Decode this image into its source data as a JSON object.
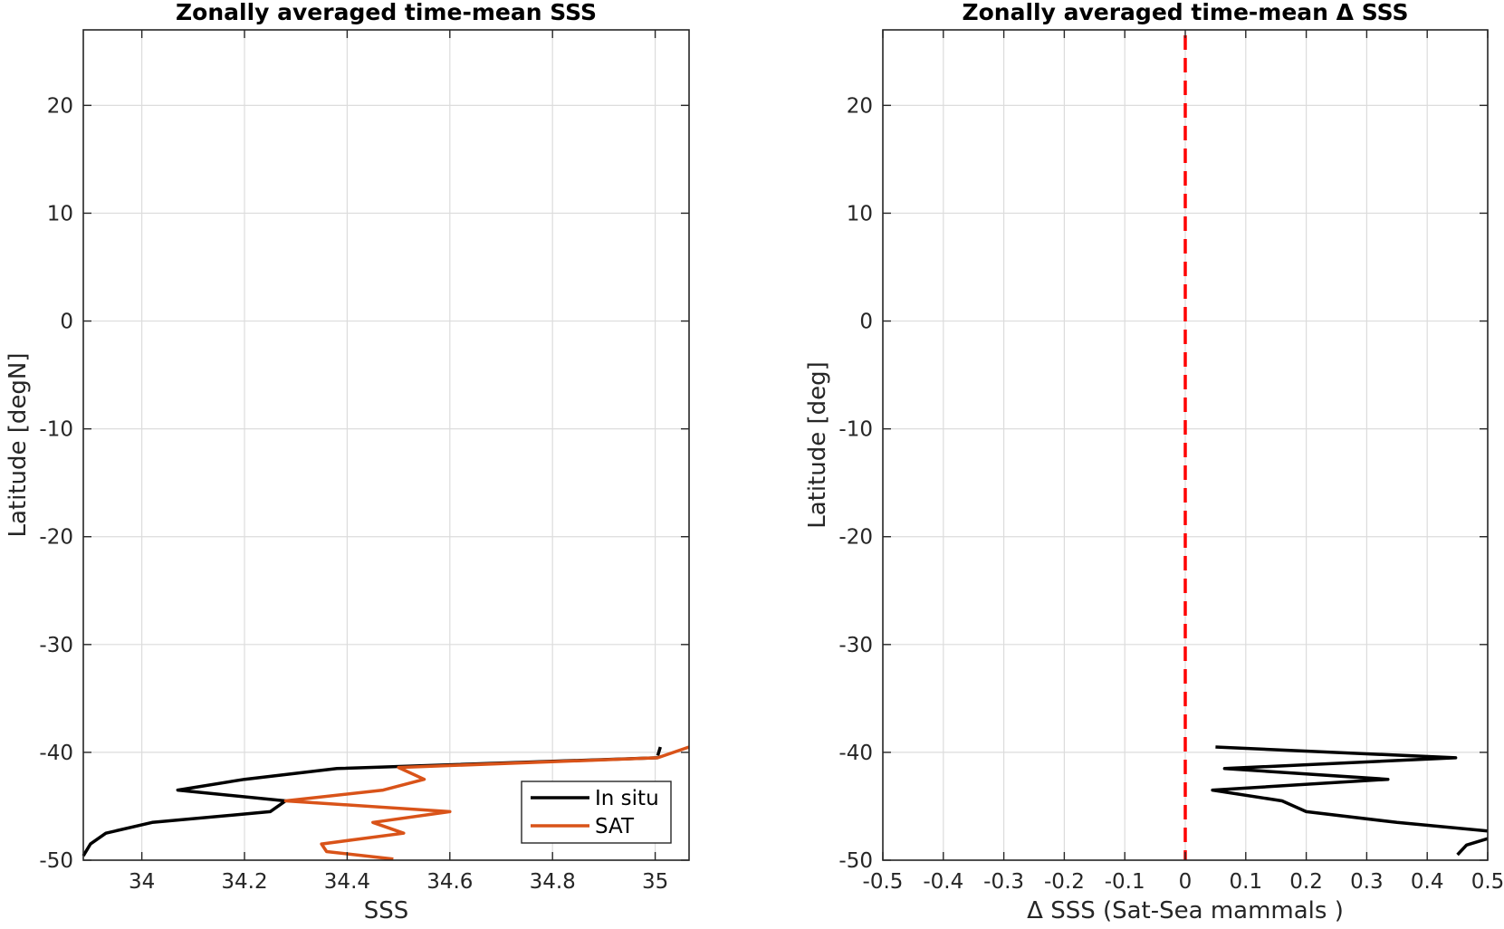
{
  "chart_data": [
    {
      "type": "line",
      "title": "Zonally averaged time-mean SSS",
      "xlabel": "SSS",
      "ylabel": "Latitude [degN]",
      "xlim": [
        33.886,
        35.066
      ],
      "ylim": [
        -50,
        27
      ],
      "xticks": [
        34,
        34.2,
        34.4,
        34.6,
        34.8,
        35
      ],
      "xtick_labels": [
        "34",
        "34.2",
        "34.4",
        "34.6",
        "34.8",
        "35"
      ],
      "yticks": [
        -50,
        -40,
        -30,
        -20,
        -10,
        0,
        10,
        20
      ],
      "ytick_labels": [
        "-50",
        "-40",
        "-30",
        "-20",
        "-10",
        "0",
        "10",
        "20"
      ],
      "grid": true,
      "legend": {
        "placement": "lower-right",
        "entries": [
          "In situ",
          "SAT"
        ]
      },
      "series": [
        {
          "name": "In situ",
          "color": "#000000",
          "segments": [
            [
              [
                35.01,
                -39.5
              ],
              [
                35.005,
                -40.3
              ]
            ],
            [
              [
                35.005,
                -40.5
              ],
              [
                34.38,
                -41.5
              ],
              [
                34.2,
                -42.5
              ],
              [
                34.07,
                -43.5
              ],
              [
                34.28,
                -44.5
              ],
              [
                34.25,
                -45.5
              ],
              [
                34.02,
                -46.5
              ],
              [
                33.93,
                -47.5
              ],
              [
                33.9,
                -48.5
              ],
              [
                33.886,
                -49.6
              ]
            ]
          ]
        },
        {
          "name": "SAT",
          "color": "#d95319",
          "segments": [
            [
              [
                35.066,
                -39.5
              ],
              [
                35.005,
                -40.5
              ],
              [
                34.5,
                -41.4
              ],
              [
                34.55,
                -42.5
              ],
              [
                34.47,
                -43.5
              ],
              [
                34.28,
                -44.5
              ],
              [
                34.6,
                -45.5
              ],
              [
                34.45,
                -46.5
              ],
              [
                34.51,
                -47.5
              ],
              [
                34.35,
                -48.5
              ],
              [
                34.36,
                -49.2
              ],
              [
                34.49,
                -49.9
              ]
            ]
          ]
        }
      ]
    },
    {
      "type": "line",
      "title": "Zonally averaged time-mean Δ SSS",
      "xlabel": "Δ SSS (Sat-Sea mammals )",
      "ylabel": "Latitude [deg]",
      "xlim": [
        -0.5,
        0.5
      ],
      "ylim": [
        -50,
        27
      ],
      "xticks": [
        -0.5,
        -0.4,
        -0.3,
        -0.2,
        -0.1,
        0,
        0.1,
        0.2,
        0.3,
        0.4,
        0.5
      ],
      "xtick_labels": [
        "-0.5",
        "-0.4",
        "-0.3",
        "-0.2",
        "-0.1",
        "0",
        "0.1",
        "0.2",
        "0.3",
        "0.4",
        "0.5"
      ],
      "yticks": [
        -50,
        -40,
        -30,
        -20,
        -10,
        0,
        10,
        20
      ],
      "ytick_labels": [
        "-50",
        "-40",
        "-30",
        "-20",
        "-10",
        "0",
        "10",
        "20"
      ],
      "grid": true,
      "reference_line": {
        "x": 0,
        "color": "#ff0000",
        "style": "dashed"
      },
      "series": [
        {
          "color": "#000000",
          "segments": [
            [
              [
                0.05,
                -39.5
              ],
              [
                0.447,
                -40.5
              ],
              [
                0.065,
                -41.5
              ],
              [
                0.335,
                -42.5
              ],
              [
                0.045,
                -43.5
              ],
              [
                0.16,
                -44.5
              ],
              [
                0.2,
                -45.5
              ],
              [
                0.35,
                -46.5
              ],
              [
                0.5,
                -47.3
              ]
            ],
            [
              [
                0.5,
                -48.0
              ],
              [
                0.465,
                -48.6
              ],
              [
                0.45,
                -49.5
              ]
            ]
          ]
        }
      ]
    }
  ]
}
